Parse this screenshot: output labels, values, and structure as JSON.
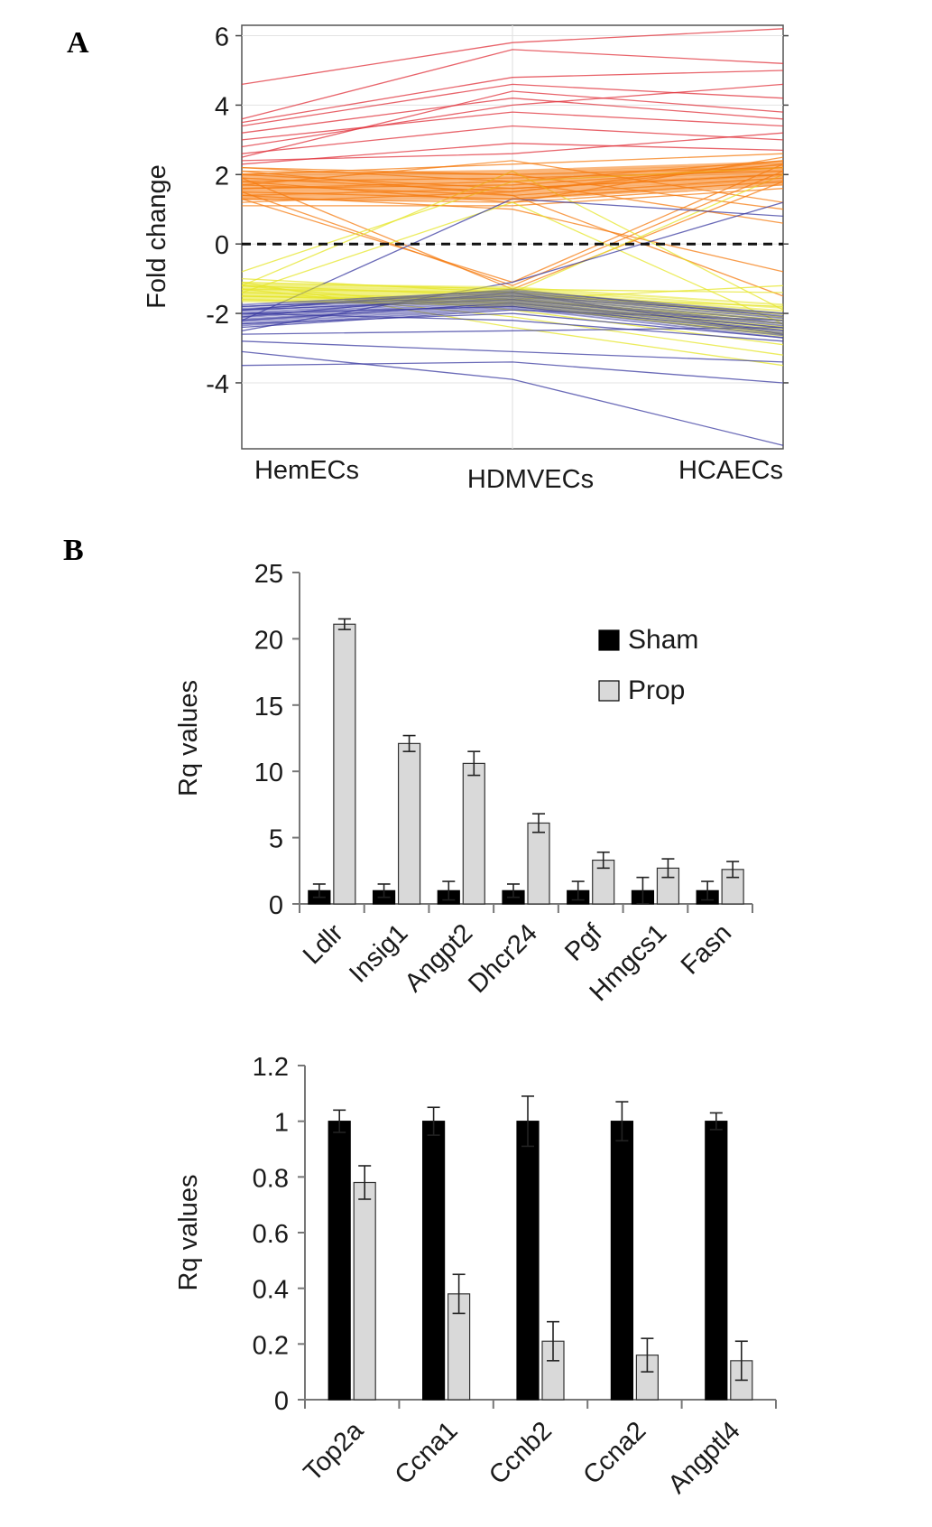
{
  "panel_labels": [
    "A",
    "B"
  ],
  "chart_data": [
    {
      "type": "line",
      "panel": "A",
      "categories": [
        "HemECs",
        "HDMVECs",
        "HCAECs"
      ],
      "ylabel": "Fold change",
      "ylim": [
        -5.9,
        6.3
      ],
      "yticks": [
        "6",
        "4",
        "2",
        "0",
        "-2",
        "-4"
      ],
      "baseline": 0,
      "grid": true,
      "colors": {
        "high": "#e0303a",
        "up": "#f57c12",
        "down_yellow": "#e5e52a",
        "down_blue": "#3a3aa0",
        "baseline": "#111111"
      },
      "series": [
        {
          "color": "#e0303a",
          "values": [
            4.6,
            5.8,
            6.2
          ]
        },
        {
          "color": "#e0303a",
          "values": [
            3.6,
            5.6,
            5.2
          ]
        },
        {
          "color": "#e0303a",
          "values": [
            3.5,
            4.8,
            5.0
          ]
        },
        {
          "color": "#e0303a",
          "values": [
            3.4,
            4.6,
            4.2
          ]
        },
        {
          "color": "#e0303a",
          "values": [
            3.2,
            4.2,
            3.6
          ]
        },
        {
          "color": "#e0303a",
          "values": [
            3.0,
            3.8,
            3.4
          ]
        },
        {
          "color": "#e0303a",
          "values": [
            2.8,
            4.0,
            4.6
          ]
        },
        {
          "color": "#e0303a",
          "values": [
            2.6,
            3.4,
            3.0
          ]
        },
        {
          "color": "#e0303a",
          "values": [
            2.4,
            2.6,
            3.2
          ]
        },
        {
          "color": "#e0303a",
          "values": [
            2.5,
            4.4,
            3.8
          ]
        },
        {
          "color": "#e0303a",
          "values": [
            2.3,
            2.9,
            2.7
          ]
        },
        {
          "color": "#f57c12",
          "values": [
            2.2,
            1.8,
            2.4
          ]
        },
        {
          "color": "#f57c12",
          "values": [
            2.1,
            2.0,
            2.2
          ]
        },
        {
          "color": "#f57c12",
          "values": [
            2.0,
            1.6,
            2.0
          ]
        },
        {
          "color": "#f57c12",
          "values": [
            1.9,
            1.5,
            2.3
          ]
        },
        {
          "color": "#f57c12",
          "values": [
            1.8,
            1.9,
            2.1
          ]
        },
        {
          "color": "#f57c12",
          "values": [
            1.7,
            1.4,
            1.9
          ]
        },
        {
          "color": "#f57c12",
          "values": [
            1.6,
            1.7,
            2.2
          ]
        },
        {
          "color": "#f57c12",
          "values": [
            1.5,
            1.3,
            1.8
          ]
        },
        {
          "color": "#f57c12",
          "values": [
            1.4,
            1.6,
            2.0
          ]
        },
        {
          "color": "#f57c12",
          "values": [
            1.3,
            1.2,
            1.7
          ]
        },
        {
          "color": "#f57c12",
          "values": [
            1.2,
            1.5,
            2.4
          ]
        },
        {
          "color": "#f57c12",
          "values": [
            1.1,
            1.1,
            1.6
          ]
        },
        {
          "color": "#f57c12",
          "values": [
            2.0,
            2.3,
            2.6
          ]
        },
        {
          "color": "#f57c12",
          "values": [
            1.8,
            1.2,
            2.5
          ]
        },
        {
          "color": "#f57c12",
          "values": [
            1.5,
            -1.2,
            2.1
          ]
        },
        {
          "color": "#f57c12",
          "values": [
            1.9,
            -1.3,
            1.8
          ]
        },
        {
          "color": "#f57c12",
          "values": [
            1.3,
            -1.1,
            2.3
          ]
        },
        {
          "color": "#f57c12",
          "values": [
            2.2,
            2.0,
            1.0
          ]
        },
        {
          "color": "#f57c12",
          "values": [
            1.6,
            1.8,
            0.6
          ]
        },
        {
          "color": "#f57c12",
          "values": [
            1.4,
            1.0,
            -0.8
          ]
        },
        {
          "color": "#f57c12",
          "values": [
            2.1,
            1.4,
            -1.5
          ]
        },
        {
          "color": "#f57c12",
          "values": [
            1.7,
            2.4,
            1.2
          ]
        },
        {
          "color": "#e5e52a",
          "values": [
            -1.1,
            -1.3,
            -1.4
          ]
        },
        {
          "color": "#e5e52a",
          "values": [
            -1.2,
            -1.5,
            -1.8
          ]
        },
        {
          "color": "#e5e52a",
          "values": [
            -1.3,
            -1.4,
            -2.0
          ]
        },
        {
          "color": "#e5e52a",
          "values": [
            -1.4,
            -1.6,
            -2.2
          ]
        },
        {
          "color": "#e5e52a",
          "values": [
            -1.5,
            -1.7,
            -2.4
          ]
        },
        {
          "color": "#e5e52a",
          "values": [
            -1.6,
            -1.8,
            -2.6
          ]
        },
        {
          "color": "#e5e52a",
          "values": [
            -1.2,
            -1.9,
            -2.9
          ]
        },
        {
          "color": "#e5e52a",
          "values": [
            -1.3,
            -2.1,
            -3.2
          ]
        },
        {
          "color": "#e5e52a",
          "values": [
            -1.1,
            -2.4,
            -3.5
          ]
        },
        {
          "color": "#e5e52a",
          "values": [
            -1.4,
            1.2,
            -2.3
          ]
        },
        {
          "color": "#e5e52a",
          "values": [
            -1.2,
            2.1,
            -1.9
          ]
        },
        {
          "color": "#e5e52a",
          "values": [
            -1.0,
            -1.4,
            2.0
          ]
        },
        {
          "color": "#e5e52a",
          "values": [
            -0.8,
            1.8,
            2.2
          ]
        },
        {
          "color": "#e5e52a",
          "values": [
            -1.5,
            -1.6,
            -1.2
          ]
        },
        {
          "color": "#3a3aa0",
          "values": [
            -1.8,
            -1.5,
            -2.0
          ]
        },
        {
          "color": "#3a3aa0",
          "values": [
            -1.9,
            -1.6,
            -2.3
          ]
        },
        {
          "color": "#3a3aa0",
          "values": [
            -2.0,
            -1.8,
            -2.5
          ]
        },
        {
          "color": "#3a3aa0",
          "values": [
            -2.1,
            -1.4,
            -2.6
          ]
        },
        {
          "color": "#3a3aa0",
          "values": [
            -2.2,
            -1.7,
            -2.4
          ]
        },
        {
          "color": "#3a3aa0",
          "values": [
            -2.3,
            -2.0,
            -2.7
          ]
        },
        {
          "color": "#3a3aa0",
          "values": [
            -2.4,
            -1.9,
            -2.2
          ]
        },
        {
          "color": "#3a3aa0",
          "values": [
            -2.0,
            -2.2,
            -2.8
          ]
        },
        {
          "color": "#3a3aa0",
          "values": [
            -1.9,
            -1.3,
            -2.1
          ]
        },
        {
          "color": "#3a3aa0",
          "values": [
            -2.8,
            -3.1,
            -3.4
          ]
        },
        {
          "color": "#3a3aa0",
          "values": [
            -3.5,
            -3.4,
            -4.0
          ]
        },
        {
          "color": "#3a3aa0",
          "values": [
            -3.1,
            -3.9,
            -5.8
          ]
        },
        {
          "color": "#3a3aa0",
          "values": [
            -2.2,
            1.3,
            0.8
          ]
        },
        {
          "color": "#3a3aa0",
          "values": [
            -2.5,
            -1.1,
            1.2
          ]
        },
        {
          "color": "#3a3aa0",
          "values": [
            -2.6,
            -2.5,
            -2.4
          ]
        }
      ]
    },
    {
      "type": "bar",
      "panel": "B",
      "categories": [
        "Ldlr",
        "Insig1",
        "Angpt2",
        "Dhcr24",
        "Pgf",
        "Hmgcs1",
        "Fasn"
      ],
      "ylabel": "Rq values",
      "ylim": [
        0,
        25
      ],
      "yticks": [
        "25",
        "20",
        "15",
        "10",
        "5",
        "0"
      ],
      "legend": {
        "placement": "top-right"
      },
      "series": [
        {
          "name": "Sham",
          "color": "#000000",
          "values": [
            1,
            1,
            1,
            1,
            1,
            1,
            1
          ],
          "errors": [
            0.5,
            0.5,
            0.7,
            0.5,
            0.7,
            1.0,
            0.7
          ]
        },
        {
          "name": "Prop",
          "color": "#d9d9d9",
          "values": [
            21.1,
            12.1,
            10.6,
            6.1,
            3.3,
            2.7,
            2.6
          ],
          "errors": [
            0.4,
            0.6,
            0.9,
            0.7,
            0.6,
            0.7,
            0.6
          ]
        }
      ]
    },
    {
      "type": "bar",
      "panel": "B",
      "categories": [
        "Top2a",
        "Ccna1",
        "Ccnb2",
        "Ccna2",
        "Angptl4"
      ],
      "ylabel": "Rq values",
      "ylim": [
        0,
        1.2
      ],
      "yticks": [
        "1.2",
        "1",
        "0.8",
        "0.6",
        "0.4",
        "0.2",
        "0"
      ],
      "series": [
        {
          "name": "Sham",
          "color": "#000000",
          "values": [
            1,
            1,
            1,
            1,
            1
          ],
          "errors": [
            0.04,
            0.05,
            0.09,
            0.07,
            0.03
          ]
        },
        {
          "name": "Prop",
          "color": "#d9d9d9",
          "values": [
            0.78,
            0.38,
            0.21,
            0.16,
            0.14
          ],
          "errors": [
            0.06,
            0.07,
            0.07,
            0.06,
            0.07
          ]
        }
      ]
    }
  ]
}
